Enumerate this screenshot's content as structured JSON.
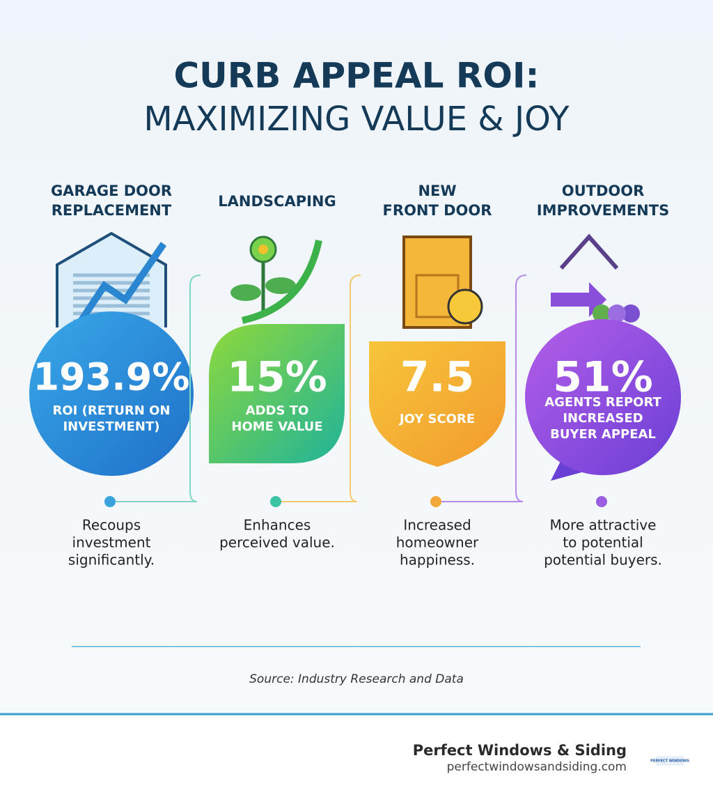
{
  "header": {
    "title_line1": "CURB APPEAL ROI:",
    "title_line2": "MAXIMIZING VALUE & JOY"
  },
  "cards": [
    {
      "heading": [
        "GARAGE DOOR",
        "REPLACEMENT"
      ],
      "stat": "193.9%",
      "stat_label": [
        "ROI (RETURN ON",
        "INVESTMENT)"
      ],
      "description": [
        "Recoups",
        "investment",
        "significantly."
      ]
    },
    {
      "heading": [
        "LANDSCAPING"
      ],
      "stat": "15%",
      "stat_label": [
        "ADDS TO",
        "HOME VALUE"
      ],
      "description": [
        "Enhances",
        "perceived value."
      ]
    },
    {
      "heading": [
        "NEW",
        "FRONT DOOR"
      ],
      "stat": "7.5",
      "stat_label": [
        "JOY SCORE"
      ],
      "description": [
        "Increased",
        "homeowner",
        "happiness."
      ]
    },
    {
      "heading": [
        "OUTDOOR",
        "IMPROVEMENTS"
      ],
      "stat": "51%",
      "stat_label": [
        "AGENTS REPORT",
        "INCREASED",
        "BUYER APPEAL"
      ],
      "description": [
        "More attractive",
        "to potential",
        "potential buyers."
      ]
    }
  ],
  "source": "Source: Industry Research and Data",
  "footer": {
    "brand": "Perfect Windows & Siding",
    "url": "perfectwindowsandsiding.com",
    "logo_text": "PERFECT WINDOWS"
  }
}
